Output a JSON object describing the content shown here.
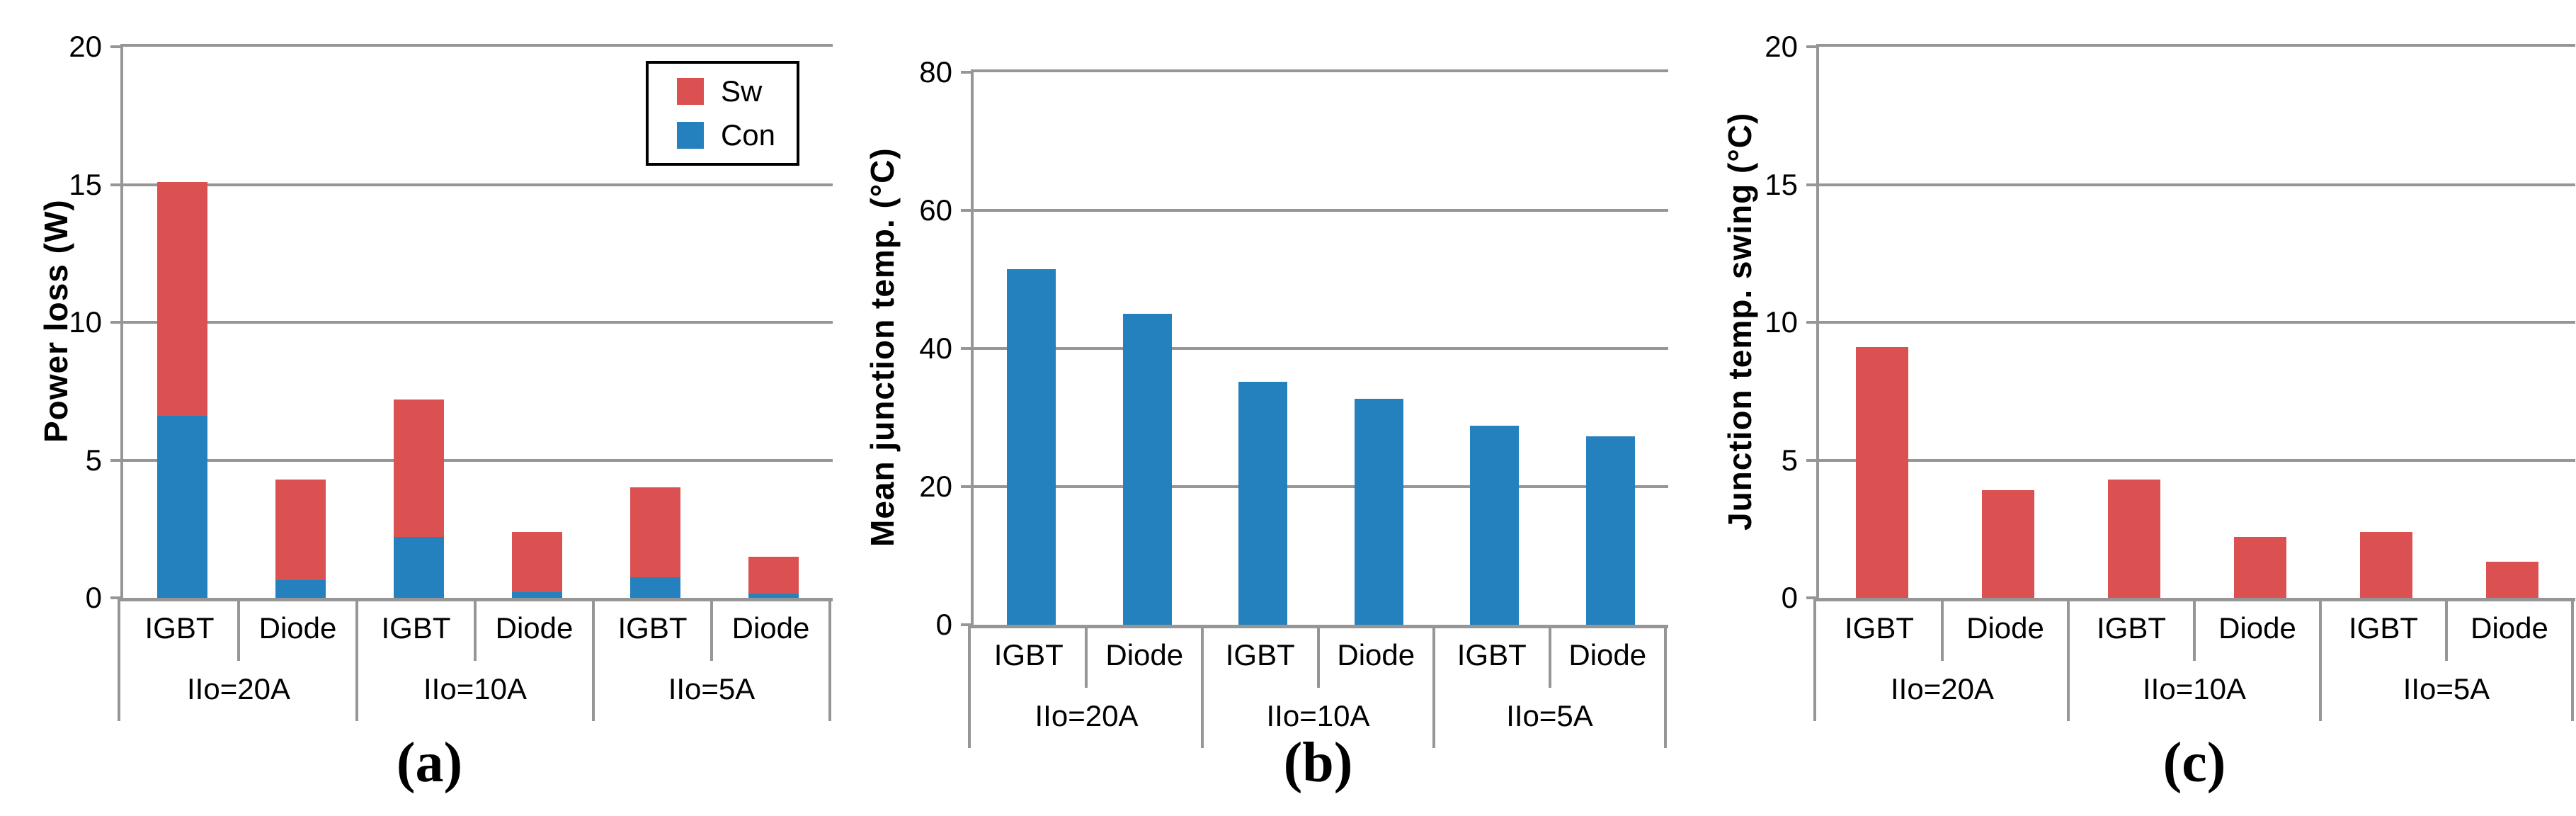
{
  "colors": {
    "sw_red": "#DB5151",
    "con_blue": "#2581BD",
    "grid_gray": "#969696",
    "legend_border": "#000000",
    "background": "#ffffff"
  },
  "chart_data": [
    {
      "type": "bar",
      "stacked": true,
      "caption": "(a)",
      "ylabel": "Power loss (W)",
      "ylim": [
        0,
        20
      ],
      "yticks": [
        0,
        5,
        10,
        15,
        20
      ],
      "grid": true,
      "legend_position": "top-right",
      "categories": [
        "IGBT",
        "Diode",
        "IGBT",
        "Diode",
        "IGBT",
        "Diode"
      ],
      "groups": [
        "IIo=20A",
        "IIo=10A",
        "IIo=5A"
      ],
      "legend": [
        {
          "label": "Sw",
          "color": "#DB5151"
        },
        {
          "label": "Con",
          "color": "#2581BD"
        }
      ],
      "series": [
        {
          "name": "Con",
          "color": "#2581BD",
          "values": [
            6.6,
            0.65,
            2.2,
            0.2,
            0.75,
            0.15
          ]
        },
        {
          "name": "Sw",
          "color": "#DB5151",
          "values": [
            8.5,
            3.65,
            5.0,
            2.2,
            3.25,
            1.35
          ]
        }
      ]
    },
    {
      "type": "bar",
      "stacked": false,
      "caption": "(b)",
      "ylabel": "Mean junction temp. (°C)",
      "ylim": [
        0,
        80
      ],
      "yticks": [
        0,
        20,
        40,
        60,
        80
      ],
      "grid": true,
      "categories": [
        "IGBT",
        "Diode",
        "IGBT",
        "Diode",
        "IGBT",
        "Diode"
      ],
      "groups": [
        "IIo=20A",
        "IIo=10A",
        "IIo=5A"
      ],
      "series": [
        {
          "color": "#2581BD",
          "values": [
            51.5,
            45.0,
            35.2,
            32.7,
            28.8,
            27.3
          ]
        }
      ]
    },
    {
      "type": "bar",
      "stacked": false,
      "caption": "(c)",
      "ylabel": "Junction temp. swing (°C)",
      "ylim": [
        0,
        20
      ],
      "yticks": [
        0,
        5,
        10,
        15,
        20
      ],
      "grid": true,
      "categories": [
        "IGBT",
        "Diode",
        "IGBT",
        "Diode",
        "IGBT",
        "Diode"
      ],
      "groups": [
        "IIo=20A",
        "IIo=10A",
        "IIo=5A"
      ],
      "series": [
        {
          "color": "#DB5151",
          "values": [
            9.1,
            3.9,
            4.3,
            2.2,
            2.4,
            1.3
          ]
        }
      ]
    }
  ]
}
